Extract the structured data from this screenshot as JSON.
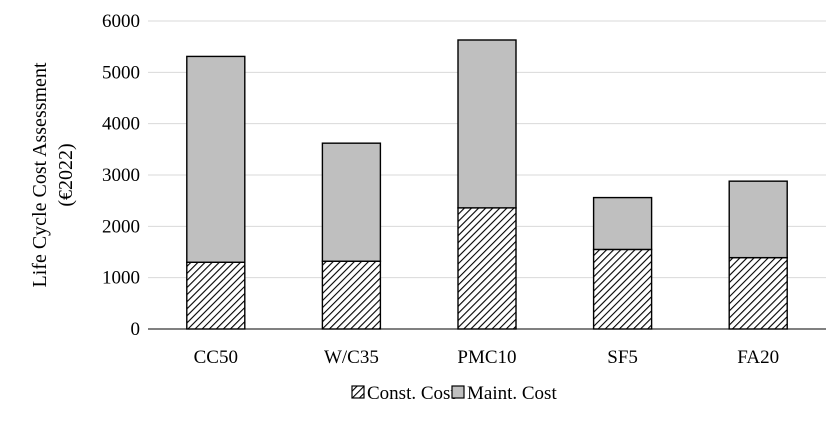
{
  "chart_data": {
    "type": "bar",
    "stacked": true,
    "categories": [
      "CC50",
      "W/C35",
      "PMC10",
      "SF5",
      "FA20"
    ],
    "series": [
      {
        "name": "Const. Cost",
        "values": [
          1300,
          1320,
          2360,
          1550,
          1390
        ],
        "fill": "hatch"
      },
      {
        "name": "Maint. Cost",
        "values": [
          4010,
          2300,
          3270,
          1010,
          1490
        ],
        "fill": "#bfbfbf"
      }
    ],
    "totals": [
      5310,
      3620,
      5630,
      2560,
      2880
    ],
    "ylabel": "Life Cycle Cost Assessment",
    "ylabel_unit": "(€2022)",
    "xlabel": "",
    "ylim": [
      0,
      6000
    ],
    "yticks": [
      "0",
      "1000",
      "2000",
      "3000",
      "4000",
      "5000",
      "6000"
    ],
    "grid": true,
    "legend_position": "bottom-center",
    "colors": {
      "maint": "#bfbfbf",
      "grid": "#d9d9d9",
      "stroke": "#000000"
    }
  }
}
